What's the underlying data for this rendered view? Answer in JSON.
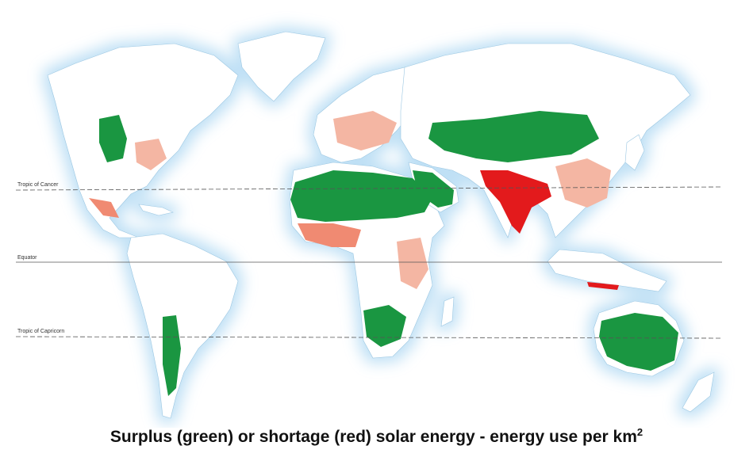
{
  "map": {
    "lines": {
      "tropic_of_cancer": "Tropic of Cancer",
      "equator": "Equator",
      "tropic_of_capricorn": "Tropic of Capricorn"
    },
    "colors": {
      "surplus": "#1a9641",
      "surplus_light": "#7fc98f",
      "shortage": "#e31a1c",
      "shortage_light": "#f4b6a3",
      "land": "#ffffff",
      "ocean_glow": "#cfe7f7"
    }
  },
  "caption": {
    "text": "Surplus (green) or shortage (red) solar energy - energy use per km",
    "superscript": "2"
  }
}
